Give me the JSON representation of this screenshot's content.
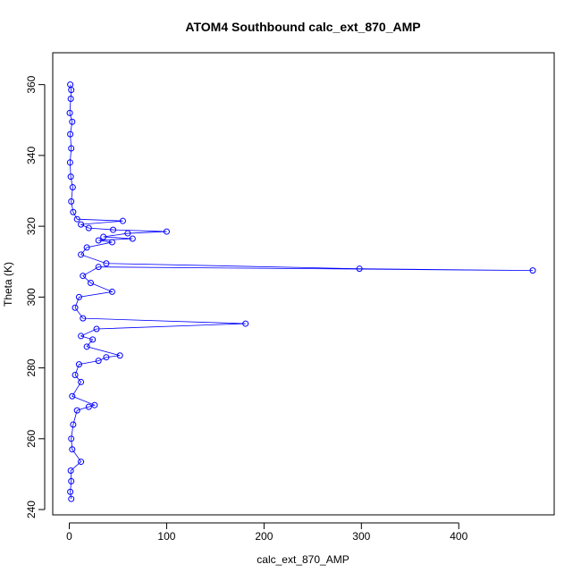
{
  "chart_data": {
    "type": "scatter",
    "title": "ATOM4 Southbound calc_ext_870_AMP",
    "xlabel": "calc_ext_870_AMP",
    "ylabel": "Theta (K)",
    "xlim": [
      -17,
      498
    ],
    "ylim": [
      238.5,
      369
    ],
    "x_ticks": [
      0,
      100,
      200,
      300,
      400
    ],
    "y_ticks": [
      240,
      260,
      280,
      300,
      320,
      340,
      360
    ],
    "grid": false,
    "series_color": "#0000ff",
    "markers": "open circles connected by lines",
    "points": [
      {
        "x": 1.0,
        "y": 360.0
      },
      {
        "x": 2.0,
        "y": 358.5
      },
      {
        "x": 1.5,
        "y": 356.0
      },
      {
        "x": 0.5,
        "y": 352.0
      },
      {
        "x": 3.0,
        "y": 349.5
      },
      {
        "x": 1.0,
        "y": 346.0
      },
      {
        "x": 2.0,
        "y": 342.0
      },
      {
        "x": 0.8,
        "y": 338.0
      },
      {
        "x": 1.5,
        "y": 334.0
      },
      {
        "x": 3.5,
        "y": 331.0
      },
      {
        "x": 2.0,
        "y": 327.0
      },
      {
        "x": 4.0,
        "y": 324.0
      },
      {
        "x": 8.0,
        "y": 322.0
      },
      {
        "x": 55.0,
        "y": 321.5
      },
      {
        "x": 12.0,
        "y": 320.5
      },
      {
        "x": 20.0,
        "y": 319.5
      },
      {
        "x": 45.0,
        "y": 319.0
      },
      {
        "x": 100.0,
        "y": 318.5
      },
      {
        "x": 60.0,
        "y": 318.0
      },
      {
        "x": 35.0,
        "y": 317.0
      },
      {
        "x": 65.0,
        "y": 316.5
      },
      {
        "x": 30.0,
        "y": 316.0
      },
      {
        "x": 44.0,
        "y": 315.5
      },
      {
        "x": 18.0,
        "y": 314.0
      },
      {
        "x": 12.0,
        "y": 312.0
      },
      {
        "x": 38.0,
        "y": 309.5
      },
      {
        "x": 298.0,
        "y": 308.0
      },
      {
        "x": 476.0,
        "y": 307.5
      },
      {
        "x": 30.0,
        "y": 308.5
      },
      {
        "x": 14.0,
        "y": 306.0
      },
      {
        "x": 22.0,
        "y": 304.0
      },
      {
        "x": 44.0,
        "y": 301.5
      },
      {
        "x": 10.0,
        "y": 300.0
      },
      {
        "x": 6.0,
        "y": 297.0
      },
      {
        "x": 14.0,
        "y": 294.0
      },
      {
        "x": 181.0,
        "y": 292.5
      },
      {
        "x": 28.0,
        "y": 291.0
      },
      {
        "x": 12.0,
        "y": 289.0
      },
      {
        "x": 24.0,
        "y": 288.0
      },
      {
        "x": 18.0,
        "y": 286.0
      },
      {
        "x": 52.0,
        "y": 283.5
      },
      {
        "x": 38.0,
        "y": 283.0
      },
      {
        "x": 30.0,
        "y": 282.0
      },
      {
        "x": 10.0,
        "y": 281.0
      },
      {
        "x": 6.0,
        "y": 278.0
      },
      {
        "x": 12.0,
        "y": 276.0
      },
      {
        "x": 3.0,
        "y": 272.0
      },
      {
        "x": 26.0,
        "y": 269.5
      },
      {
        "x": 20.0,
        "y": 269.0
      },
      {
        "x": 8.0,
        "y": 268.0
      },
      {
        "x": 4.0,
        "y": 264.0
      },
      {
        "x": 2.0,
        "y": 260.0
      },
      {
        "x": 3.0,
        "y": 257.0
      },
      {
        "x": 12.0,
        "y": 253.5
      },
      {
        "x": 1.5,
        "y": 251.0
      },
      {
        "x": 2.0,
        "y": 248.0
      },
      {
        "x": 1.0,
        "y": 245.0
      },
      {
        "x": 2.0,
        "y": 243.0
      }
    ]
  }
}
